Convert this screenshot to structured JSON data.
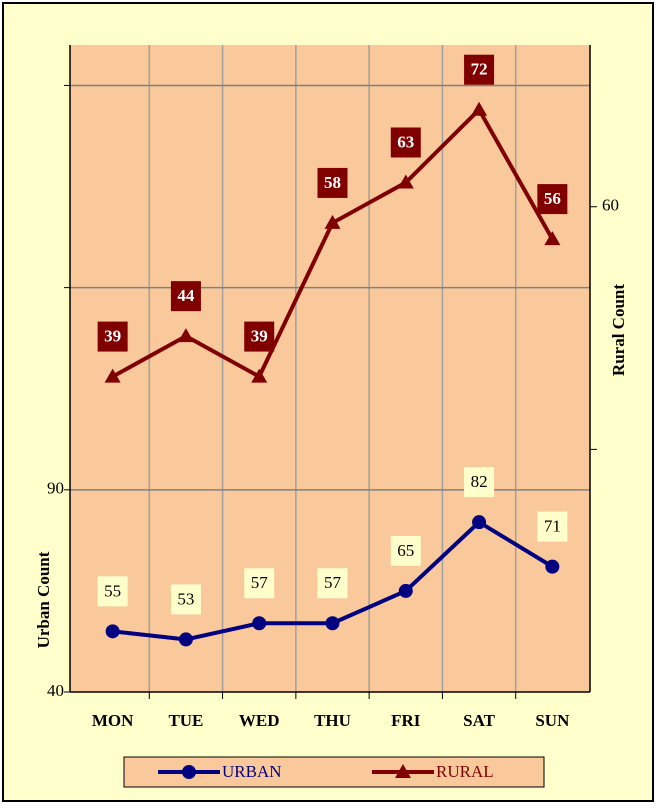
{
  "chart_data": {
    "type": "line",
    "categories": [
      "MON",
      "TUE",
      "WED",
      "THU",
      "FRI",
      "SAT",
      "SUN"
    ],
    "series": [
      {
        "name": "URBAN",
        "color": "#000080",
        "marker": "circle",
        "values": [
          55,
          53,
          57,
          57,
          65,
          82,
          71
        ]
      },
      {
        "name": "RURAL",
        "color": "#800000",
        "marker": "triangle",
        "axis": "y2",
        "values": [
          39,
          44,
          39,
          58,
          63,
          72,
          56
        ]
      }
    ],
    "ylabel": "Urban Count",
    "y2label": "Rural Count",
    "ylim": [
      40,
      200
    ],
    "yticks": [
      40,
      90
    ],
    "ygrid": [
      140,
      190
    ],
    "y2lim": [
      0,
      80
    ],
    "y2ticks": [
      60
    ],
    "y2minorticks": [
      30
    ],
    "grid": true,
    "legend": "bottom"
  }
}
